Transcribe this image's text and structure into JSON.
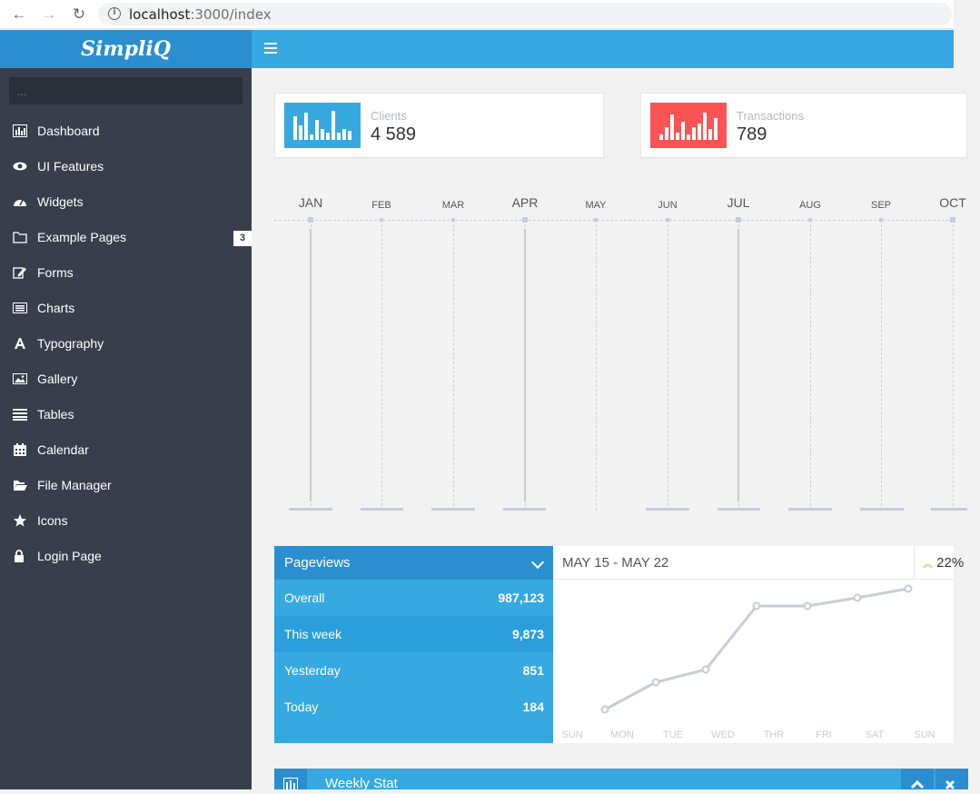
{
  "browser": {
    "url_host": "localhost",
    "url_path": ":3000/index",
    "back_glyph": "←",
    "forward_glyph": "→",
    "reload_glyph": "↻"
  },
  "brand": {
    "name": "SimpliQ"
  },
  "search": {
    "placeholder": "..."
  },
  "sidebar": {
    "items": [
      {
        "label": "Dashboard",
        "icon": "bar-chart-icon"
      },
      {
        "label": "UI Features",
        "icon": "eye-icon"
      },
      {
        "label": "Widgets",
        "icon": "dashboard-gauge-icon"
      },
      {
        "label": "Example Pages",
        "icon": "folder-icon",
        "badge": "3"
      },
      {
        "label": "Forms",
        "icon": "edit-icon"
      },
      {
        "label": "Charts",
        "icon": "list-alt-icon"
      },
      {
        "label": "Typography",
        "icon": "font-icon"
      },
      {
        "label": "Gallery",
        "icon": "picture-icon"
      },
      {
        "label": "Tables",
        "icon": "align-justify-icon"
      },
      {
        "label": "Calendar",
        "icon": "calendar-icon"
      },
      {
        "label": "File Manager",
        "icon": "folder-open-icon"
      },
      {
        "label": "Icons",
        "icon": "star-icon"
      },
      {
        "label": "Login Page",
        "icon": "lock-icon"
      }
    ]
  },
  "stats": [
    {
      "label": "Clients",
      "value": "4 589",
      "color": "#36a9e1"
    },
    {
      "label": "Transactions",
      "value": "789",
      "color": "#fa5353"
    }
  ],
  "months": [
    "JAN",
    "FEB",
    "MAR",
    "APR",
    "MAY",
    "JUN",
    "JUL",
    "AUG",
    "SEP",
    "OCT"
  ],
  "pageviews": {
    "title": "Pageviews",
    "rows": [
      {
        "label": "Overall",
        "value": "987,123"
      },
      {
        "label": "This week",
        "value": "9,873"
      },
      {
        "label": "Yesterday",
        "value": "851"
      },
      {
        "label": "Today",
        "value": "184"
      }
    ]
  },
  "week": {
    "range": "MAY 15 - MAY 22",
    "percent": "22%",
    "days": [
      "SUN",
      "MON",
      "TUE",
      "WED",
      "THR",
      "FRI",
      "SAT",
      "SUN"
    ]
  },
  "weekly_stat": {
    "title": "Weekly Stat"
  },
  "colors": {
    "accent": "#36a9e1",
    "accent_dark": "#2b8fcf",
    "sidebar": "#383e4b",
    "danger": "#fa5353",
    "line": "#c8ccd4"
  }
}
